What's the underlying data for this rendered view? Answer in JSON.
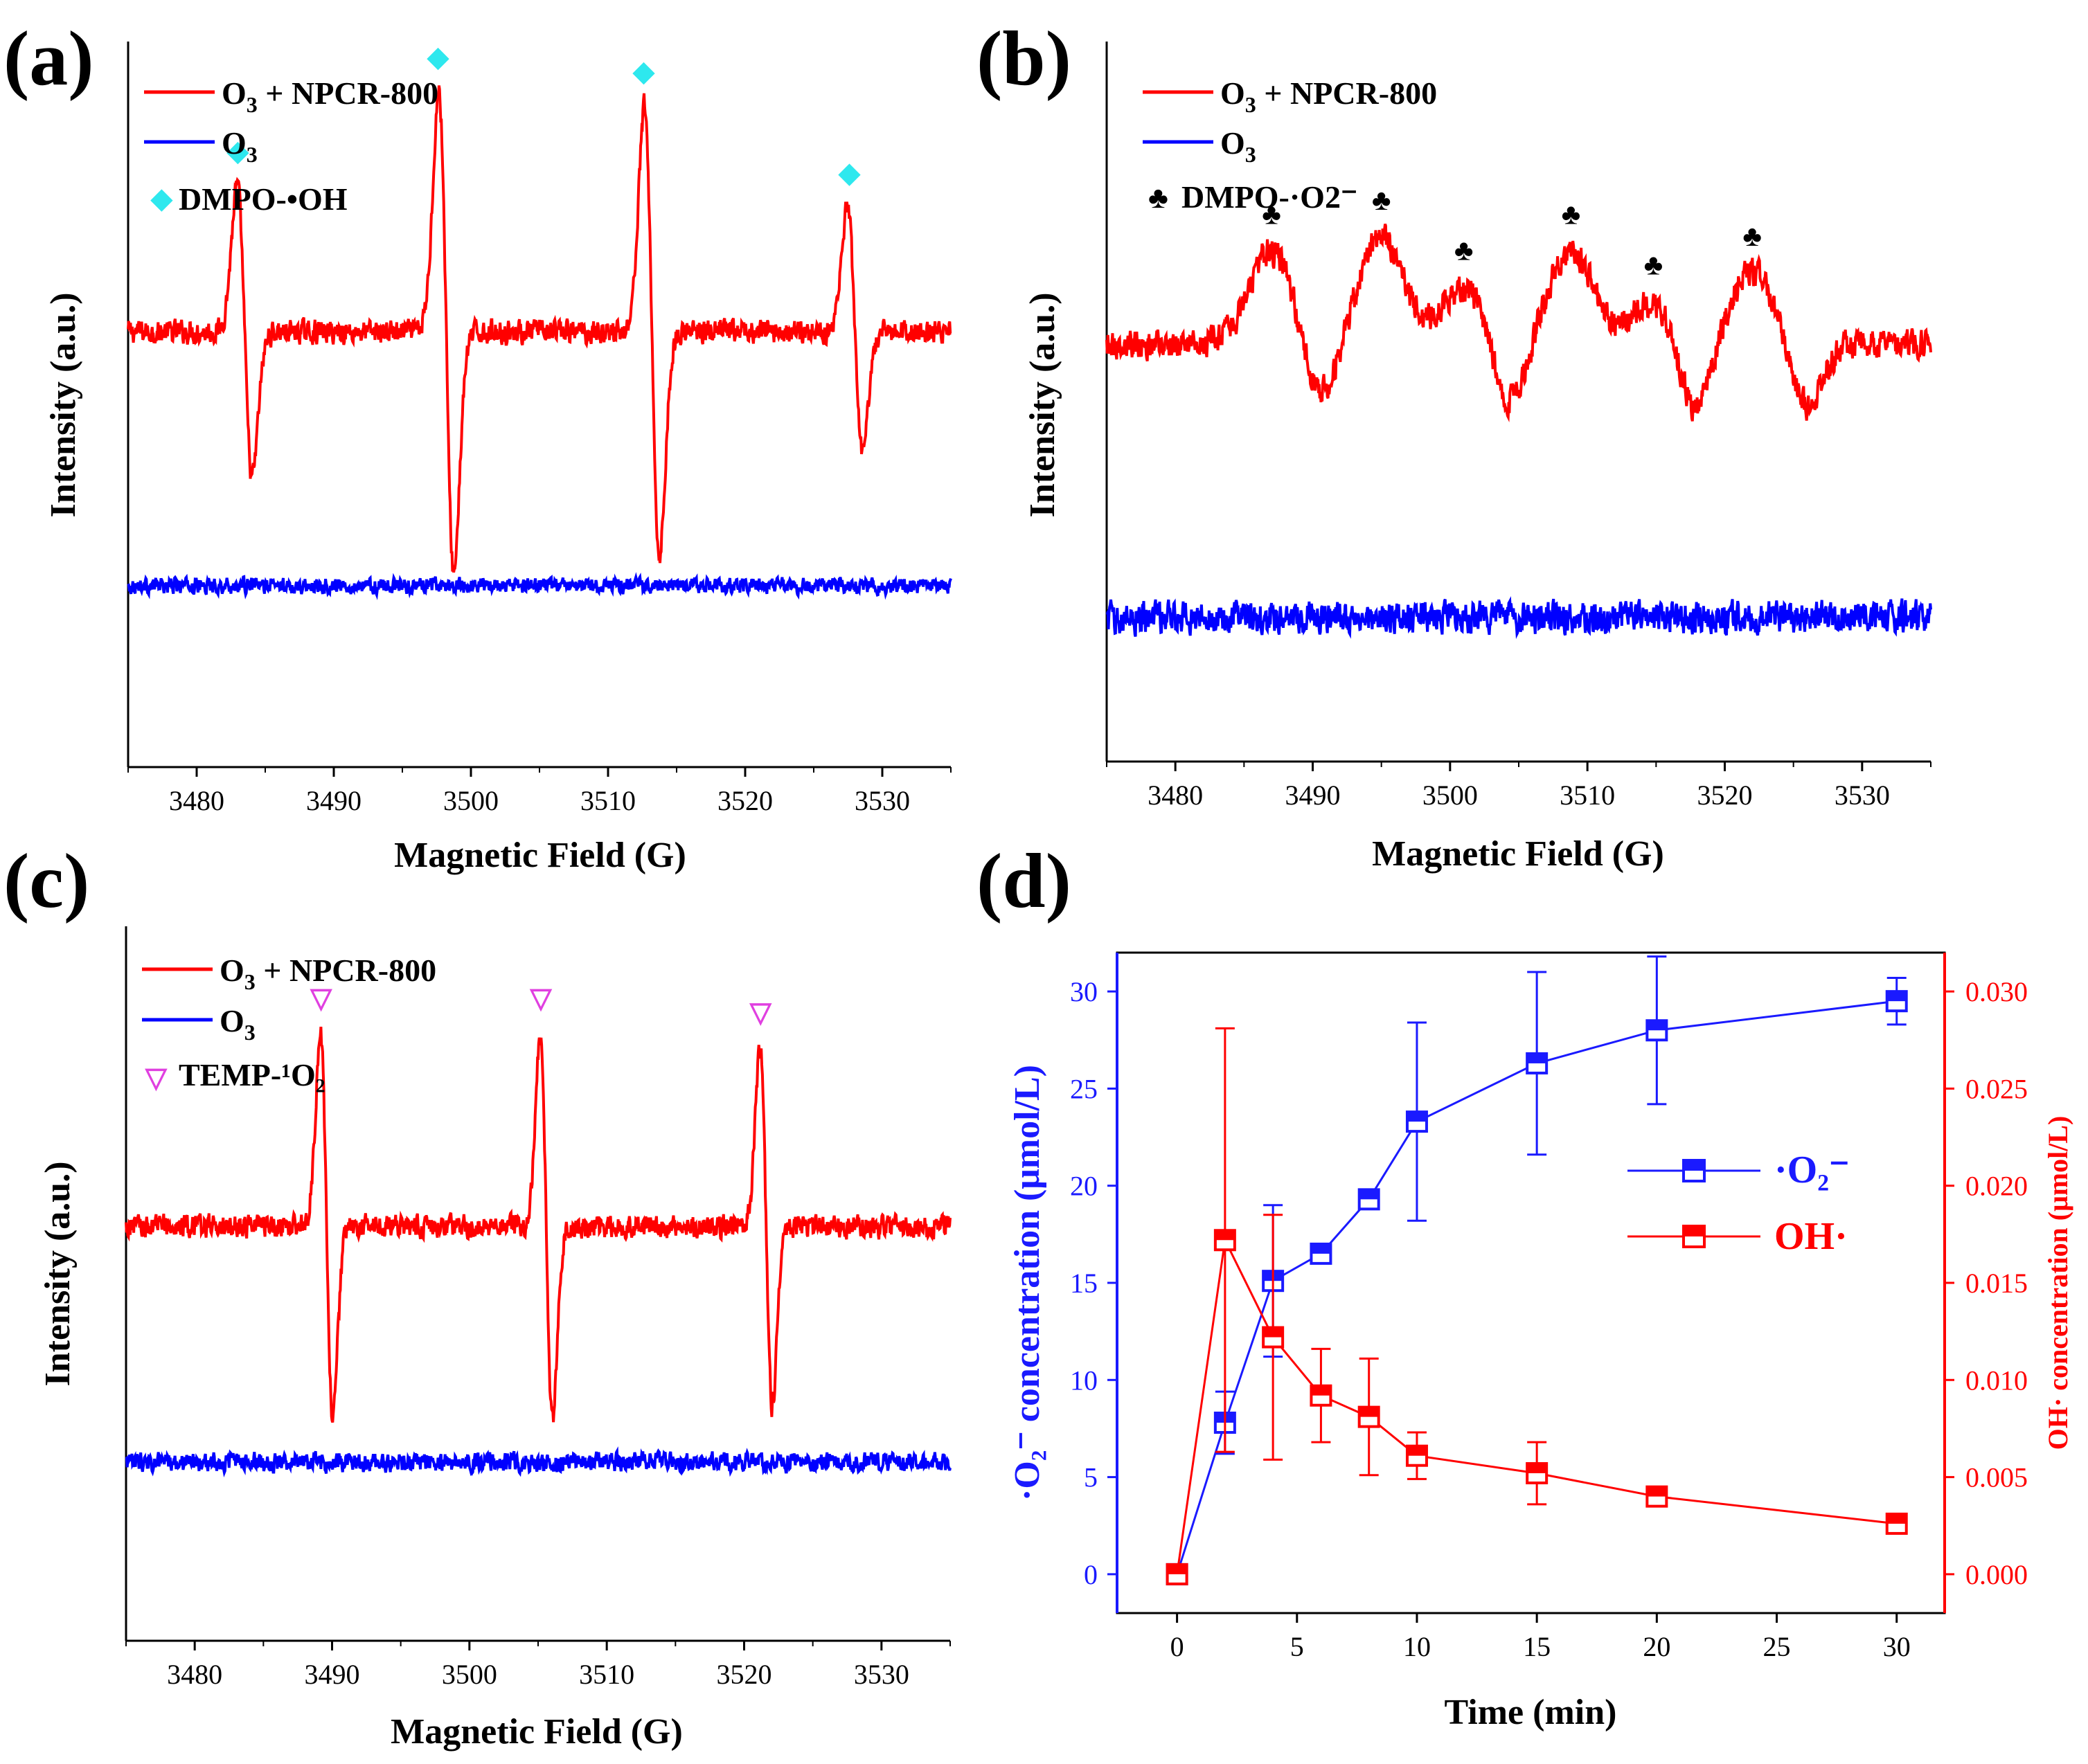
{
  "figure": {
    "panels": [
      {
        "id": "a",
        "letter": "(a)"
      },
      {
        "id": "b",
        "letter": "(b)"
      },
      {
        "id": "c",
        "letter": "(c)"
      },
      {
        "id": "d",
        "letter": "(d)"
      }
    ]
  },
  "chart_data": [
    {
      "id": "a",
      "type": "line",
      "title": "(a)",
      "xlabel": "Magnetic Field (G)",
      "ylabel": "Intensity (a.u.)",
      "xlim": [
        3475,
        3535
      ],
      "xticks": [
        3480,
        3490,
        3500,
        3510,
        3520,
        3530
      ],
      "yticks": [],
      "series": [
        {
          "name": "O3 + NPCR-800",
          "color": "#ff0000",
          "baseline": 0.6,
          "noise": 0.018,
          "peaks": [
            {
              "x": 3483.5,
              "amp": 0.2
            },
            {
              "x": 3498.2,
              "amp": 0.33
            },
            {
              "x": 3513.2,
              "amp": 0.31
            },
            {
              "x": 3528.0,
              "amp": 0.17
            }
          ],
          "peak_width": 0.55
        },
        {
          "name": "O3",
          "color": "#0000ff",
          "baseline": 0.25,
          "noise": 0.012,
          "peaks": []
        }
      ],
      "markers": {
        "label": "DMPO-•OH",
        "symbol": "◆",
        "color": "#2ee8ee",
        "x": [
          3483.0,
          3497.6,
          3512.6,
          3527.6
        ]
      }
    },
    {
      "id": "b",
      "type": "line",
      "title": "(b)",
      "xlabel": "Magnetic Field (G)",
      "ylabel": "Intensity (a.u.)",
      "xlim": [
        3475,
        3535
      ],
      "xticks": [
        3480,
        3490,
        3500,
        3510,
        3520,
        3530
      ],
      "yticks": [],
      "series": [
        {
          "name": "O3 + NPCR-800",
          "color": "#ff0000",
          "baseline": 0.58,
          "noise": 0.022,
          "bumps": [
            {
              "x": 3487.0,
              "amp": 0.13
            },
            {
              "x": 3495.0,
              "amp": 0.15
            },
            {
              "x": 3501.0,
              "amp": 0.08
            },
            {
              "x": 3508.8,
              "amp": 0.13
            },
            {
              "x": 3514.8,
              "amp": 0.06
            },
            {
              "x": 3522.0,
              "amp": 0.1
            }
          ],
          "dips": [
            {
              "x": 3490.5,
              "amp": -0.08
            },
            {
              "x": 3504.3,
              "amp": -0.09
            },
            {
              "x": 3517.8,
              "amp": -0.1
            },
            {
              "x": 3526.0,
              "amp": -0.09
            }
          ]
        },
        {
          "name": "O3",
          "color": "#0000ff",
          "baseline": 0.2,
          "noise": 0.025,
          "peaks": []
        }
      ],
      "markers": {
        "label": "DMPO-·O2⁻",
        "symbol": "♣",
        "color": "#000000",
        "x": [
          3487.0,
          3495.0,
          3501.0,
          3508.8,
          3514.8,
          3522.0
        ]
      }
    },
    {
      "id": "c",
      "type": "line",
      "title": "(c)",
      "xlabel": "Magnetic Field (G)",
      "ylabel": "Intensity (a.u.)",
      "xlim": [
        3475,
        3535
      ],
      "xticks": [
        3480,
        3490,
        3500,
        3510,
        3520,
        3530
      ],
      "yticks": [],
      "series": [
        {
          "name": "O3 + NPCR-800",
          "color": "#ff0000",
          "baseline": 0.58,
          "noise": 0.018,
          "peaks": [
            {
              "x": 3489.6,
              "amp": 0.27
            },
            {
              "x": 3505.6,
              "amp": 0.27
            },
            {
              "x": 3521.6,
              "amp": 0.25
            }
          ],
          "peak_width": 0.45
        },
        {
          "name": "O3",
          "color": "#0000ff",
          "baseline": 0.25,
          "noise": 0.015,
          "peaks": []
        }
      ],
      "markers": {
        "label": "TEMP-¹O₂",
        "symbol": "▽",
        "color": "#e040e0",
        "x": [
          3489.2,
          3505.2,
          3521.2
        ]
      }
    },
    {
      "id": "d",
      "type": "line",
      "title": "(d)",
      "xlabel": "Time (min)",
      "ylabel": "·O₂⁻ concentration (μmol/L)",
      "y2label": "OH· concentration (μmol/L)",
      "xlim": [
        -2.5,
        32
      ],
      "ylim": [
        -2,
        32
      ],
      "y2lim": [
        -0.002,
        0.032
      ],
      "xticks": [
        0,
        5,
        10,
        15,
        20,
        25,
        30
      ],
      "yticks": [
        0,
        5,
        10,
        15,
        20,
        25,
        30
      ],
      "y2ticks": [
        "0.000",
        "0.005",
        "0.010",
        "0.015",
        "0.020",
        "0.025",
        "0.030"
      ],
      "x": [
        0,
        2,
        4,
        6,
        8,
        10,
        15,
        20,
        30
      ],
      "series": [
        {
          "name": "·O₂⁻",
          "axis": "left",
          "color": "#1a1aff",
          "values": [
            0,
            7.8,
            15.1,
            16.5,
            19.3,
            23.3,
            26.3,
            28.0,
            29.5
          ],
          "errors": [
            0.3,
            1.6,
            3.9,
            0.5,
            0.4,
            5.1,
            4.7,
            3.8,
            1.2
          ]
        },
        {
          "name": "OH·",
          "axis": "right",
          "color": "#ff0000",
          "values": [
            0.0,
            0.0172,
            0.0122,
            0.0092,
            0.0081,
            0.0061,
            0.0052,
            0.004,
            0.0026
          ],
          "errors": [
            0.0002,
            0.0109,
            0.0063,
            0.0024,
            0.003,
            0.0012,
            0.0016,
            0.0003,
            0.0003
          ]
        }
      ]
    }
  ]
}
